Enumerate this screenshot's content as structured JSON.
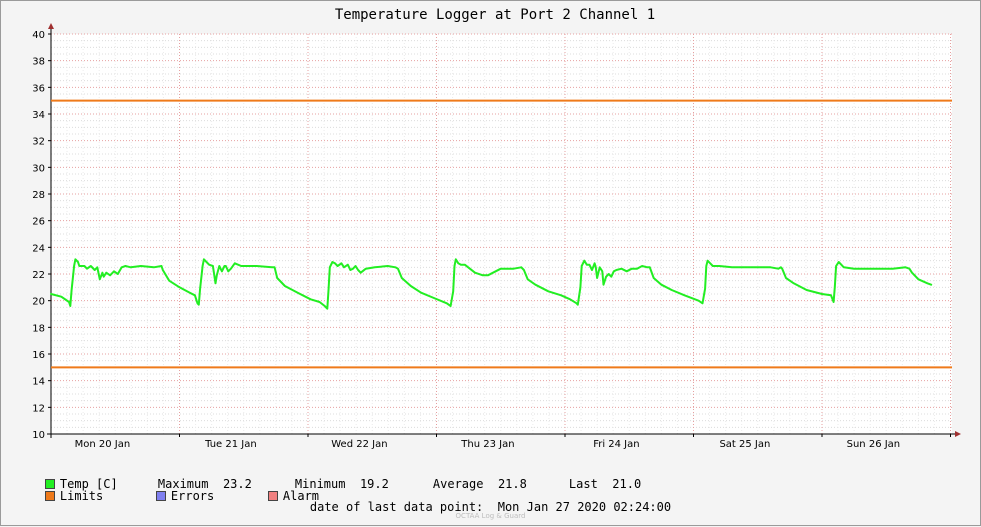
{
  "chart_data": {
    "type": "line",
    "title": "Temperature Logger at Port 2 Channel 1",
    "ylim": [
      10,
      40
    ],
    "yticks": [
      10,
      12,
      14,
      16,
      18,
      20,
      22,
      24,
      26,
      28,
      30,
      32,
      34,
      36,
      38,
      40
    ],
    "xtick_labels": [
      "Mon 20 Jan",
      "Tue 21 Jan",
      "Wed 22 Jan",
      "Thu 23 Jan",
      "Fri 24 Jan",
      "Sat 25 Jan",
      "Sun 26 Jan"
    ],
    "grid": true,
    "legend_placement": "bottom",
    "series": [
      {
        "name": "Temp [C]",
        "color": "#22ee22",
        "x_unit": "days since the first data point",
        "points": [
          [
            0.0,
            20.5
          ],
          [
            0.08,
            20.3
          ],
          [
            0.14,
            19.9
          ],
          [
            0.15,
            19.6
          ],
          [
            0.16,
            20.8
          ],
          [
            0.18,
            22.6
          ],
          [
            0.19,
            23.1
          ],
          [
            0.21,
            22.9
          ],
          [
            0.22,
            22.6
          ],
          [
            0.26,
            22.6
          ],
          [
            0.28,
            22.4
          ],
          [
            0.31,
            22.6
          ],
          [
            0.34,
            22.3
          ],
          [
            0.36,
            22.5
          ],
          [
            0.38,
            21.6
          ],
          [
            0.4,
            22.1
          ],
          [
            0.41,
            21.8
          ],
          [
            0.43,
            22.1
          ],
          [
            0.46,
            21.9
          ],
          [
            0.49,
            22.2
          ],
          [
            0.52,
            22.0
          ],
          [
            0.55,
            22.5
          ],
          [
            0.58,
            22.6
          ],
          [
            0.62,
            22.5
          ],
          [
            0.7,
            22.6
          ],
          [
            0.8,
            22.5
          ],
          [
            0.86,
            22.6
          ],
          [
            0.87,
            22.3
          ],
          [
            0.92,
            21.5
          ],
          [
            1.0,
            21.0
          ],
          [
            1.08,
            20.6
          ],
          [
            1.12,
            20.4
          ],
          [
            1.14,
            19.8
          ],
          [
            1.15,
            19.7
          ],
          [
            1.16,
            20.9
          ],
          [
            1.18,
            22.6
          ],
          [
            1.19,
            23.1
          ],
          [
            1.21,
            22.9
          ],
          [
            1.23,
            22.7
          ],
          [
            1.26,
            22.6
          ],
          [
            1.28,
            21.3
          ],
          [
            1.29,
            21.9
          ],
          [
            1.31,
            22.6
          ],
          [
            1.33,
            22.2
          ],
          [
            1.35,
            22.6
          ],
          [
            1.36,
            22.6
          ],
          [
            1.38,
            22.2
          ],
          [
            1.4,
            22.4
          ],
          [
            1.43,
            22.8
          ],
          [
            1.48,
            22.6
          ],
          [
            1.6,
            22.6
          ],
          [
            1.72,
            22.5
          ],
          [
            1.74,
            22.5
          ],
          [
            1.76,
            21.7
          ],
          [
            1.82,
            21.1
          ],
          [
            1.92,
            20.6
          ],
          [
            2.02,
            20.1
          ],
          [
            2.09,
            19.9
          ],
          [
            2.13,
            19.6
          ],
          [
            2.15,
            19.4
          ],
          [
            2.16,
            20.9
          ],
          [
            2.17,
            22.5
          ],
          [
            2.19,
            22.9
          ],
          [
            2.21,
            22.8
          ],
          [
            2.23,
            22.6
          ],
          [
            2.26,
            22.8
          ],
          [
            2.28,
            22.5
          ],
          [
            2.31,
            22.7
          ],
          [
            2.33,
            22.3
          ],
          [
            2.35,
            22.4
          ],
          [
            2.37,
            22.6
          ],
          [
            2.39,
            22.3
          ],
          [
            2.41,
            22.1
          ],
          [
            2.45,
            22.4
          ],
          [
            2.52,
            22.5
          ],
          [
            2.62,
            22.6
          ],
          [
            2.68,
            22.5
          ],
          [
            2.7,
            22.4
          ],
          [
            2.73,
            21.7
          ],
          [
            2.8,
            21.1
          ],
          [
            2.88,
            20.6
          ],
          [
            2.98,
            20.2
          ],
          [
            3.08,
            19.8
          ],
          [
            3.11,
            19.6
          ],
          [
            3.13,
            20.7
          ],
          [
            3.14,
            22.6
          ],
          [
            3.15,
            23.1
          ],
          [
            3.17,
            22.8
          ],
          [
            3.19,
            22.7
          ],
          [
            3.22,
            22.7
          ],
          [
            3.26,
            22.4
          ],
          [
            3.3,
            22.1
          ],
          [
            3.36,
            21.9
          ],
          [
            3.4,
            21.9
          ],
          [
            3.44,
            22.1
          ],
          [
            3.5,
            22.4
          ],
          [
            3.6,
            22.4
          ],
          [
            3.66,
            22.5
          ],
          [
            3.68,
            22.3
          ],
          [
            3.71,
            21.6
          ],
          [
            3.77,
            21.2
          ],
          [
            3.87,
            20.7
          ],
          [
            3.97,
            20.4
          ],
          [
            4.04,
            20.1
          ],
          [
            4.09,
            19.8
          ],
          [
            4.1,
            19.7
          ],
          [
            4.12,
            21.0
          ],
          [
            4.13,
            22.6
          ],
          [
            4.15,
            23.0
          ],
          [
            4.17,
            22.7
          ],
          [
            4.19,
            22.7
          ],
          [
            4.21,
            22.3
          ],
          [
            4.23,
            22.8
          ],
          [
            4.24,
            22.5
          ],
          [
            4.25,
            21.7
          ],
          [
            4.27,
            22.5
          ],
          [
            4.29,
            22.2
          ],
          [
            4.3,
            21.2
          ],
          [
            4.32,
            21.8
          ],
          [
            4.34,
            22.0
          ],
          [
            4.36,
            21.8
          ],
          [
            4.38,
            22.2
          ],
          [
            4.4,
            22.3
          ],
          [
            4.44,
            22.4
          ],
          [
            4.48,
            22.2
          ],
          [
            4.52,
            22.4
          ],
          [
            4.56,
            22.4
          ],
          [
            4.6,
            22.6
          ],
          [
            4.64,
            22.5
          ],
          [
            4.66,
            22.5
          ],
          [
            4.69,
            21.7
          ],
          [
            4.75,
            21.2
          ],
          [
            4.83,
            20.8
          ],
          [
            4.93,
            20.4
          ],
          [
            5.04,
            20.0
          ],
          [
            5.07,
            19.8
          ],
          [
            5.09,
            20.9
          ],
          [
            5.1,
            22.6
          ],
          [
            5.11,
            23.0
          ],
          [
            5.13,
            22.8
          ],
          [
            5.15,
            22.6
          ],
          [
            5.2,
            22.6
          ],
          [
            5.3,
            22.5
          ],
          [
            5.45,
            22.5
          ],
          [
            5.6,
            22.5
          ],
          [
            5.66,
            22.4
          ],
          [
            5.68,
            22.5
          ],
          [
            5.69,
            22.4
          ],
          [
            5.72,
            21.7
          ],
          [
            5.78,
            21.3
          ],
          [
            5.88,
            20.8
          ],
          [
            6.0,
            20.5
          ],
          [
            6.07,
            20.4
          ],
          [
            6.09,
            19.9
          ],
          [
            6.1,
            21.0
          ],
          [
            6.11,
            22.6
          ],
          [
            6.13,
            22.9
          ],
          [
            6.15,
            22.7
          ],
          [
            6.17,
            22.5
          ],
          [
            6.25,
            22.4
          ],
          [
            6.4,
            22.4
          ],
          [
            6.55,
            22.4
          ],
          [
            6.65,
            22.5
          ],
          [
            6.68,
            22.4
          ],
          [
            6.7,
            22.1
          ],
          [
            6.75,
            21.6
          ],
          [
            6.82,
            21.3
          ],
          [
            6.85,
            21.2
          ]
        ]
      },
      {
        "name": "Limits",
        "color": "#ef7a1a",
        "values": [
          35,
          15
        ]
      }
    ]
  },
  "legend": {
    "temp_label": "Temp [C]",
    "maximum_label": "Maximum",
    "maximum_value": "23.2",
    "minimum_label": "Minimum",
    "minimum_value": "19.2",
    "average_label": "Average",
    "average_value": "21.8",
    "last_label": "Last",
    "last_value": "21.0",
    "limits_label": "Limits",
    "errors_label": "Errors",
    "alarm_label": "Alarm",
    "colors": {
      "temp": "#22ee22",
      "limits": "#ef7a1a",
      "errors": "#7f7ff0",
      "alarm": "#f08080"
    }
  },
  "footer": {
    "last_point_label": "date of last data point:",
    "last_point_value": "Mon Jan 27 2020 02:24:00",
    "watermark": "OCTAA Log & Guard"
  }
}
